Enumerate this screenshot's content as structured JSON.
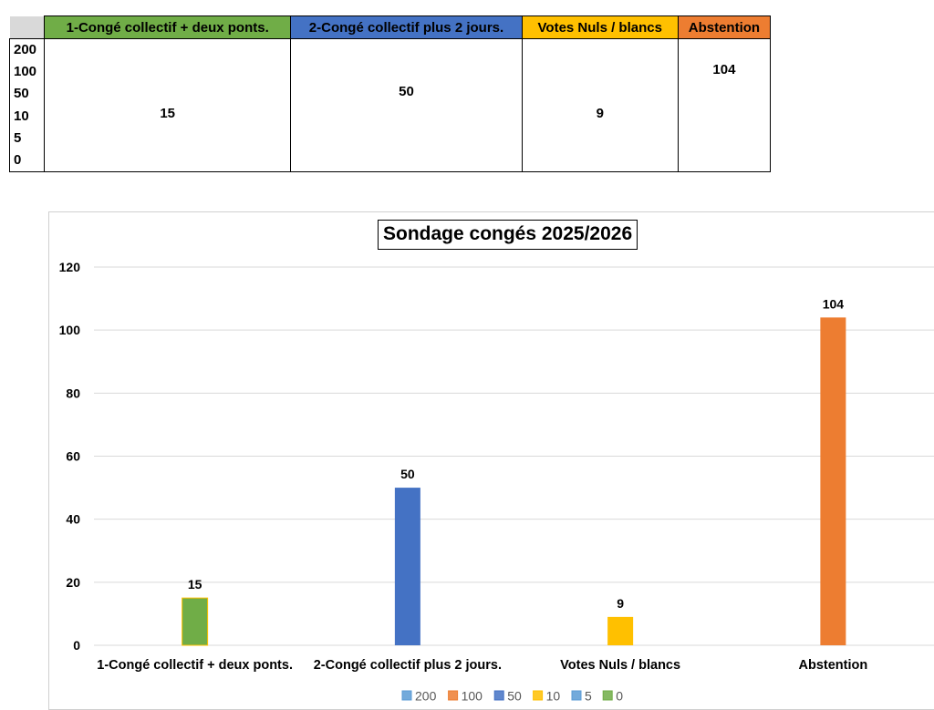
{
  "table": {
    "headers": [
      {
        "label": "1-Congé collectif + deux ponts.",
        "color": "#70ad47"
      },
      {
        "label": "2-Congé collectif plus 2 jours.",
        "color": "#4472c4"
      },
      {
        "label": "Votes Nuls / blancs",
        "color": "#ffc000"
      },
      {
        "label": "Abstention",
        "color": "#ed7d31"
      }
    ],
    "row_labels": [
      "200",
      "100",
      "50",
      "10",
      "5",
      "0"
    ],
    "values": [
      "15",
      "50",
      "9",
      "104"
    ]
  },
  "chart_data": {
    "type": "bar",
    "title": "Sondage congés 2025/2026",
    "categories": [
      "1-Congé collectif + deux ponts.",
      "2-Congé collectif plus 2 jours.",
      "Votes Nuls / blancs",
      "Abstention"
    ],
    "values": [
      15,
      50,
      9,
      104
    ],
    "bar_colors": [
      "#70ad47",
      "#4472c4",
      "#ffc000",
      "#ed7d31"
    ],
    "data_labels": [
      "15",
      "50",
      "9",
      "104"
    ],
    "ylim": [
      0,
      120
    ],
    "yticks": [
      "0",
      "20",
      "40",
      "60",
      "80",
      "100",
      "120"
    ],
    "grid": true,
    "legend_position": "bottom",
    "legend": [
      {
        "name": "200",
        "color": "#5b9bd5"
      },
      {
        "name": "100",
        "color": "#ed7d31"
      },
      {
        "name": "50",
        "color": "#4472c4"
      },
      {
        "name": "10",
        "color": "#ffc000"
      },
      {
        "name": "5",
        "color": "#5b9bd5"
      },
      {
        "name": "0",
        "color": "#70ad47"
      }
    ]
  }
}
